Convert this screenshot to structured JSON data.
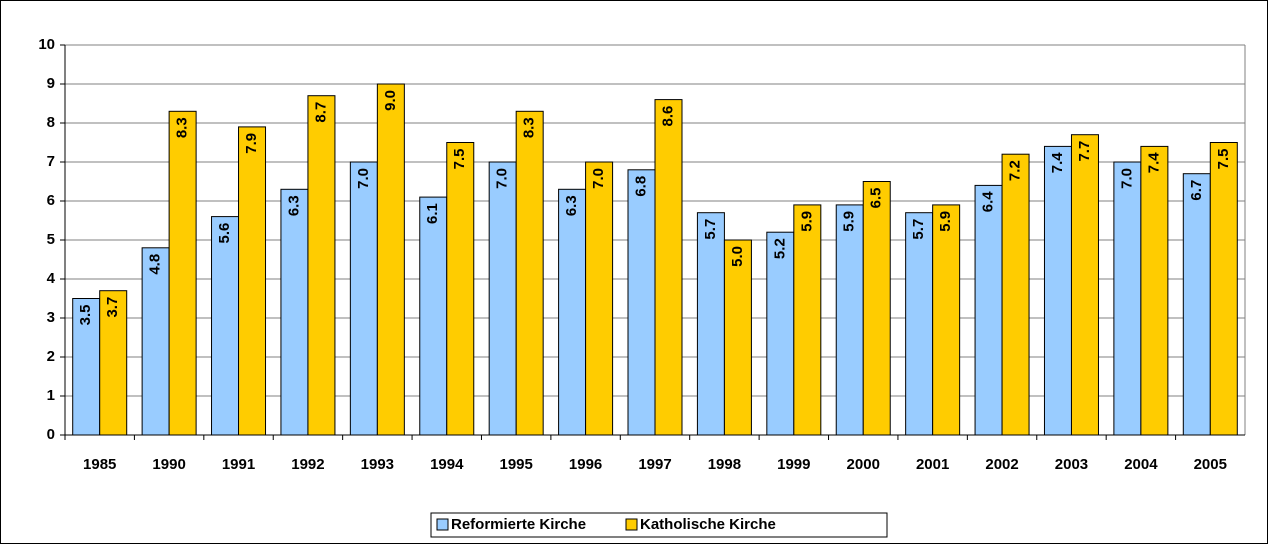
{
  "chart_data": {
    "type": "bar",
    "categories": [
      "1985",
      "1990",
      "1991",
      "1992",
      "1993",
      "1994",
      "1995",
      "1996",
      "1997",
      "1998",
      "1999",
      "2000",
      "2001",
      "2002",
      "2003",
      "2004",
      "2005"
    ],
    "series": [
      {
        "name": "Reformierte Kirche",
        "color": "#99ccff",
        "values": [
          3.5,
          4.8,
          5.6,
          6.3,
          7.0,
          6.1,
          7.0,
          6.3,
          6.8,
          5.7,
          5.2,
          5.9,
          5.7,
          6.4,
          7.4,
          7.0,
          6.7
        ],
        "value_labels": [
          "3.5",
          "4.8",
          "5.6",
          "6.3",
          "7.0",
          "6.1",
          "7.0",
          "6.3",
          "6.8",
          "5.7",
          "5.2",
          "5.9",
          "5.7",
          "6.4",
          "7.4",
          "7.0",
          "6.7"
        ]
      },
      {
        "name": "Katholische Kirche",
        "color": "#ffcc00",
        "values": [
          3.7,
          8.3,
          7.9,
          8.7,
          9.0,
          7.5,
          8.3,
          7.0,
          8.6,
          5.0,
          5.9,
          6.5,
          5.9,
          7.2,
          7.7,
          7.4,
          7.5
        ],
        "value_labels": [
          "3.7",
          "8.3",
          "7.9",
          "8.7",
          "9.0",
          "7.5",
          "8.3",
          "7.0",
          "8.6",
          "5.0",
          "5.9",
          "6.5",
          "5.9",
          "7.2",
          "7.7",
          "7.4",
          "7.5"
        ]
      }
    ],
    "ylim": [
      0,
      10
    ],
    "yticks": [
      0,
      1,
      2,
      3,
      4,
      5,
      6,
      7,
      8,
      9,
      10
    ],
    "grid": true,
    "legend": "bottom"
  }
}
